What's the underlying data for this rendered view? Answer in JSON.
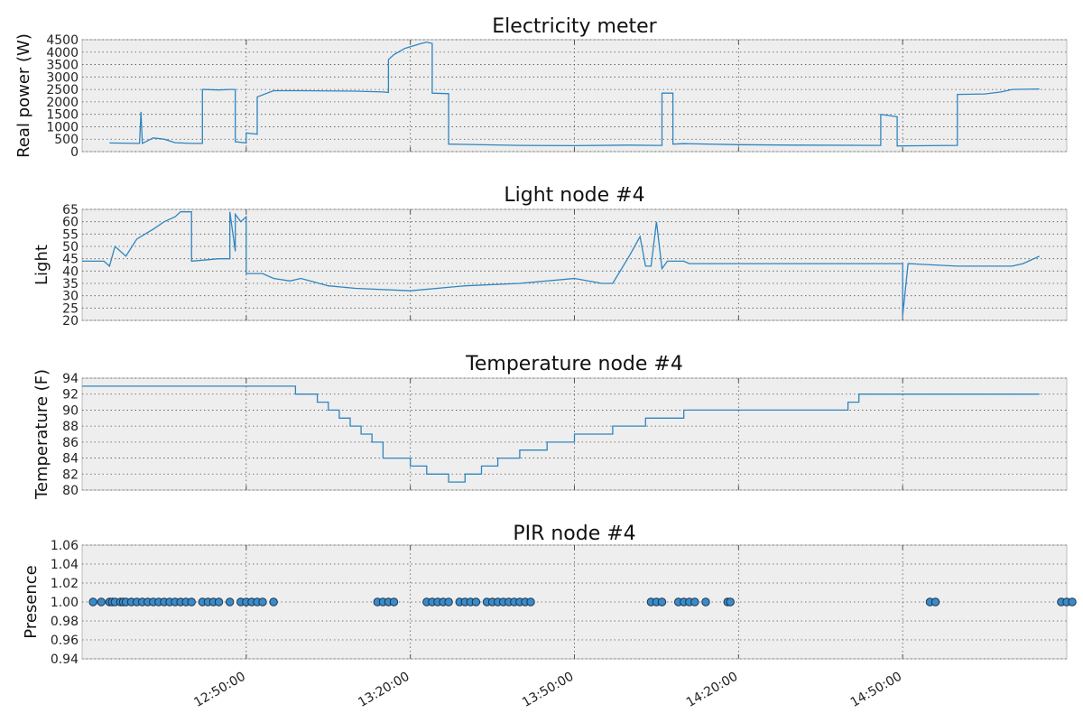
{
  "chart_data": [
    {
      "type": "line",
      "title": "Electricity meter",
      "ylabel": "Real power (W)",
      "ylim": [
        0,
        4500
      ],
      "yticks": [
        0,
        500,
        1000,
        1500,
        2000,
        2500,
        3000,
        3500,
        4000,
        4500
      ],
      "grid": true,
      "series": [
        {
          "x": [
            "12:25:00",
            "12:30:00",
            "12:30:30",
            "12:30:45",
            "12:31:00",
            "12:33:00",
            "12:35:00",
            "12:37:00",
            "12:40:00",
            "12:42:00",
            "12:42:00",
            "12:45:00",
            "12:47:00",
            "12:48:00",
            "12:48:00",
            "12:50:00",
            "12:50:00",
            "12:52:00",
            "12:52:00",
            "12:55:00",
            "13:00:00",
            "13:10:00",
            "13:15:00",
            "13:16:00",
            "13:16:00",
            "13:17:00",
            "13:19:00",
            "13:22:00",
            "13:23:00",
            "13:24:00",
            "13:24:00",
            "13:27:00",
            "13:27:00",
            "13:40:00",
            "13:50:00",
            "14:00:00",
            "14:05:00",
            "14:06:00",
            "14:06:00",
            "14:08:00",
            "14:08:00",
            "14:10:00",
            "14:20:00",
            "14:30:00",
            "14:46:00",
            "14:46:00",
            "14:49:00",
            "14:49:00",
            "14:55:00",
            "15:00:00",
            "15:00:00",
            "15:05:00",
            "15:08:00",
            "15:10:00",
            "15:15:00"
          ],
          "y": [
            350,
            330,
            330,
            1600,
            330,
            550,
            500,
            360,
            330,
            330,
            2500,
            2480,
            2500,
            2500,
            400,
            350,
            750,
            700,
            2200,
            2450,
            2450,
            2430,
            2400,
            2380,
            3700,
            3900,
            4150,
            4350,
            4400,
            4350,
            2350,
            2330,
            300,
            250,
            240,
            260,
            250,
            250,
            2350,
            2350,
            300,
            320,
            280,
            260,
            250,
            1500,
            1400,
            230,
            240,
            250,
            2300,
            2320,
            2400,
            2500,
            2520
          ]
        }
      ]
    },
    {
      "type": "line",
      "title": "Light node #4",
      "ylabel": "Light",
      "ylim": [
        20,
        65
      ],
      "yticks": [
        20,
        25,
        30,
        35,
        40,
        45,
        50,
        55,
        60,
        65
      ],
      "grid": true,
      "series": [
        {
          "x": [
            "12:20:00",
            "12:24:00",
            "12:25:00",
            "12:26:00",
            "12:28:00",
            "12:30:00",
            "12:33:00",
            "12:35:00",
            "12:37:00",
            "12:38:00",
            "12:40:00",
            "12:40:00",
            "12:45:00",
            "12:47:00",
            "12:47:00",
            "12:48:00",
            "12:48:00",
            "12:49:00",
            "12:50:00",
            "12:50:00",
            "12:53:00",
            "12:55:00",
            "12:58:00",
            "13:00:00",
            "13:05:00",
            "13:10:00",
            "13:20:00",
            "13:30:00",
            "13:40:00",
            "13:50:00",
            "13:55:00",
            "13:57:00",
            "14:00:00",
            "14:01:00",
            "14:02:00",
            "14:03:00",
            "14:04:00",
            "14:05:00",
            "14:06:00",
            "14:07:00",
            "14:10:00",
            "14:11:00",
            "14:12:00",
            "14:20:00",
            "14:40:00",
            "14:50:00",
            "14:50:00",
            "14:51:00",
            "15:00:00",
            "15:05:00",
            "15:10:00",
            "15:12:00",
            "15:15:00"
          ],
          "y": [
            44,
            44,
            42,
            50,
            46,
            53,
            57,
            60,
            62,
            64,
            64,
            44,
            45,
            45,
            64,
            48,
            63,
            60,
            62,
            39,
            39,
            37,
            36,
            37,
            34,
            33,
            32,
            34,
            35,
            37,
            35,
            35,
            46,
            50,
            54,
            42,
            42,
            60,
            41,
            44,
            44,
            43,
            43,
            43,
            43,
            43,
            22,
            43,
            42,
            42,
            42,
            43,
            46
          ]
        }
      ]
    },
    {
      "type": "line",
      "title": "Temperature node #4",
      "ylabel": "Temperature (F)",
      "ylim": [
        80,
        94
      ],
      "yticks": [
        80,
        82,
        84,
        86,
        88,
        90,
        92,
        94
      ],
      "grid": true,
      "series": [
        {
          "x": [
            "12:20:00",
            "12:59:00",
            "12:59:00",
            "13:03:00",
            "13:03:00",
            "13:05:00",
            "13:05:00",
            "13:07:00",
            "13:07:00",
            "13:09:00",
            "13:09:00",
            "13:11:00",
            "13:11:00",
            "13:13:00",
            "13:13:00",
            "13:15:00",
            "13:15:00",
            "13:20:00",
            "13:20:00",
            "13:23:00",
            "13:23:00",
            "13:27:00",
            "13:27:00",
            "13:30:00",
            "13:30:00",
            "13:33:00",
            "13:33:00",
            "13:36:00",
            "13:36:00",
            "13:40:00",
            "13:40:00",
            "13:45:00",
            "13:45:00",
            "13:50:00",
            "13:50:00",
            "13:57:00",
            "13:57:00",
            "14:03:00",
            "14:03:00",
            "14:10:00",
            "14:10:00",
            "14:40:00",
            "14:40:00",
            "14:42:00",
            "14:42:00",
            "15:15:00"
          ],
          "y": [
            93,
            93,
            92,
            92,
            91,
            91,
            90,
            90,
            89,
            89,
            88,
            88,
            87,
            87,
            86,
            86,
            84,
            84,
            83,
            83,
            82,
            82,
            81,
            81,
            82,
            82,
            83,
            83,
            84,
            84,
            85,
            85,
            86,
            86,
            87,
            87,
            88,
            88,
            89,
            89,
            90,
            90,
            91,
            91,
            92,
            92
          ]
        }
      ]
    },
    {
      "type": "scatter",
      "title": "PIR node #4",
      "ylabel": "Presence",
      "ylim": [
        0.94,
        1.06
      ],
      "yticks": [
        0.94,
        0.96,
        0.98,
        1.0,
        1.02,
        1.04,
        1.06
      ],
      "ytick_labels": [
        "0.94",
        "0.96",
        "0.98",
        "1.00",
        "1.02",
        "1.04",
        "1.06"
      ],
      "grid": true,
      "series": [
        {
          "x": [
            "12:22:00",
            "12:23:30",
            "12:25:00",
            "12:25:30",
            "12:26:00",
            "12:27:00",
            "12:27:30",
            "12:28:00",
            "12:29:00",
            "12:30:00",
            "12:31:00",
            "12:32:00",
            "12:33:00",
            "12:34:00",
            "12:35:00",
            "12:36:00",
            "12:37:00",
            "12:38:00",
            "12:39:00",
            "12:40:00",
            "12:42:00",
            "12:43:00",
            "12:44:00",
            "12:45:00",
            "12:47:00",
            "12:49:00",
            "12:50:00",
            "12:51:00",
            "12:52:00",
            "12:53:00",
            "12:55:00",
            "13:14:00",
            "13:15:00",
            "13:16:00",
            "13:17:00",
            "13:23:00",
            "13:24:00",
            "13:25:00",
            "13:26:00",
            "13:27:00",
            "13:29:00",
            "13:30:00",
            "13:31:00",
            "13:32:00",
            "13:34:00",
            "13:35:00",
            "13:36:00",
            "13:37:00",
            "13:38:00",
            "13:39:00",
            "13:40:00",
            "13:41:00",
            "13:42:00",
            "14:04:00",
            "14:05:00",
            "14:06:00",
            "14:09:00",
            "14:10:00",
            "14:11:00",
            "14:12:00",
            "14:14:00",
            "14:18:00",
            "14:18:30",
            "14:55:00",
            "14:56:00",
            "15:19:00",
            "15:20:00",
            "15:21:00"
          ],
          "y": [
            1,
            1,
            1,
            1,
            1,
            1,
            1,
            1,
            1,
            1,
            1,
            1,
            1,
            1,
            1,
            1,
            1,
            1,
            1,
            1,
            1,
            1,
            1,
            1,
            1,
            1,
            1,
            1,
            1,
            1,
            1,
            1,
            1,
            1,
            1,
            1,
            1,
            1,
            1,
            1,
            1,
            1,
            1,
            1,
            1,
            1,
            1,
            1,
            1,
            1,
            1,
            1,
            1,
            1,
            1,
            1,
            1,
            1,
            1,
            1,
            1,
            1,
            1,
            1,
            1,
            1,
            1,
            1
          ]
        }
      ]
    }
  ],
  "x_axis": {
    "range": [
      "12:20:00",
      "15:20:00"
    ],
    "ticks": [
      "12:50:00",
      "13:20:00",
      "13:50:00",
      "14:20:00",
      "14:50:00"
    ]
  },
  "colors": {
    "line": "#2f85c0",
    "point_fill": "#3a8cc8",
    "point_edge": "#1b3550",
    "plot_bg": "#eeeeee"
  }
}
